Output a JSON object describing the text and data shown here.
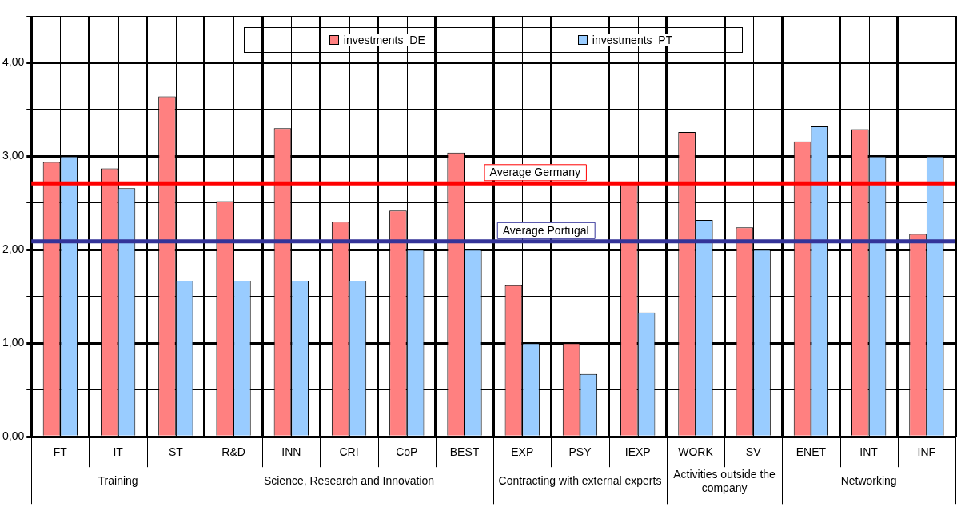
{
  "chart_data": {
    "type": "bar",
    "categories": [
      "FT",
      "IT",
      "ST",
      "R&D",
      "INN",
      "CRI",
      "CoP",
      "BEST",
      "EXP",
      "PSY",
      "IEXP",
      "WORK",
      "SV",
      "ENET",
      "INT",
      "INF"
    ],
    "series": [
      {
        "name": "investments_DE",
        "color": "#ff8080",
        "values": [
          2.94,
          2.87,
          3.64,
          2.52,
          3.3,
          2.3,
          2.42,
          3.04,
          1.62,
          1.0,
          2.72,
          3.26,
          2.24,
          3.16,
          3.29,
          2.17
        ]
      },
      {
        "name": "investments_PT",
        "color": "#99ccff",
        "values": [
          3.0,
          2.66,
          1.67,
          1.67,
          1.67,
          1.67,
          2.0,
          2.0,
          1.0,
          0.67,
          1.33,
          2.32,
          2.0,
          3.32,
          3.0,
          3.0
        ]
      }
    ],
    "ylim": [
      0,
      4.5
    ],
    "yticks": [
      {
        "value": 0,
        "label": "0,00"
      },
      {
        "value": 0.5,
        "label": null
      },
      {
        "value": 1,
        "label": "1,00"
      },
      {
        "value": 1.5,
        "label": null
      },
      {
        "value": 2,
        "label": "2,00"
      },
      {
        "value": 2.5,
        "label": null
      },
      {
        "value": 3,
        "label": "3,00"
      },
      {
        "value": 3.5,
        "label": null
      },
      {
        "value": 4,
        "label": "4,00"
      },
      {
        "value": 4.5,
        "label": null
      }
    ],
    "ref_lines": [
      {
        "axis": "y",
        "value": 2.71,
        "label": "Average Germany",
        "color": "#ff0000"
      },
      {
        "axis": "y",
        "value": 2.09,
        "label": "Average Portugal",
        "color": "#333399"
      }
    ],
    "annotations": [
      "Training",
      "Science, Research and Innovation",
      "Contracting with external experts",
      "Activities outside the company",
      "Networking"
    ],
    "grid": true,
    "legend": "top"
  }
}
